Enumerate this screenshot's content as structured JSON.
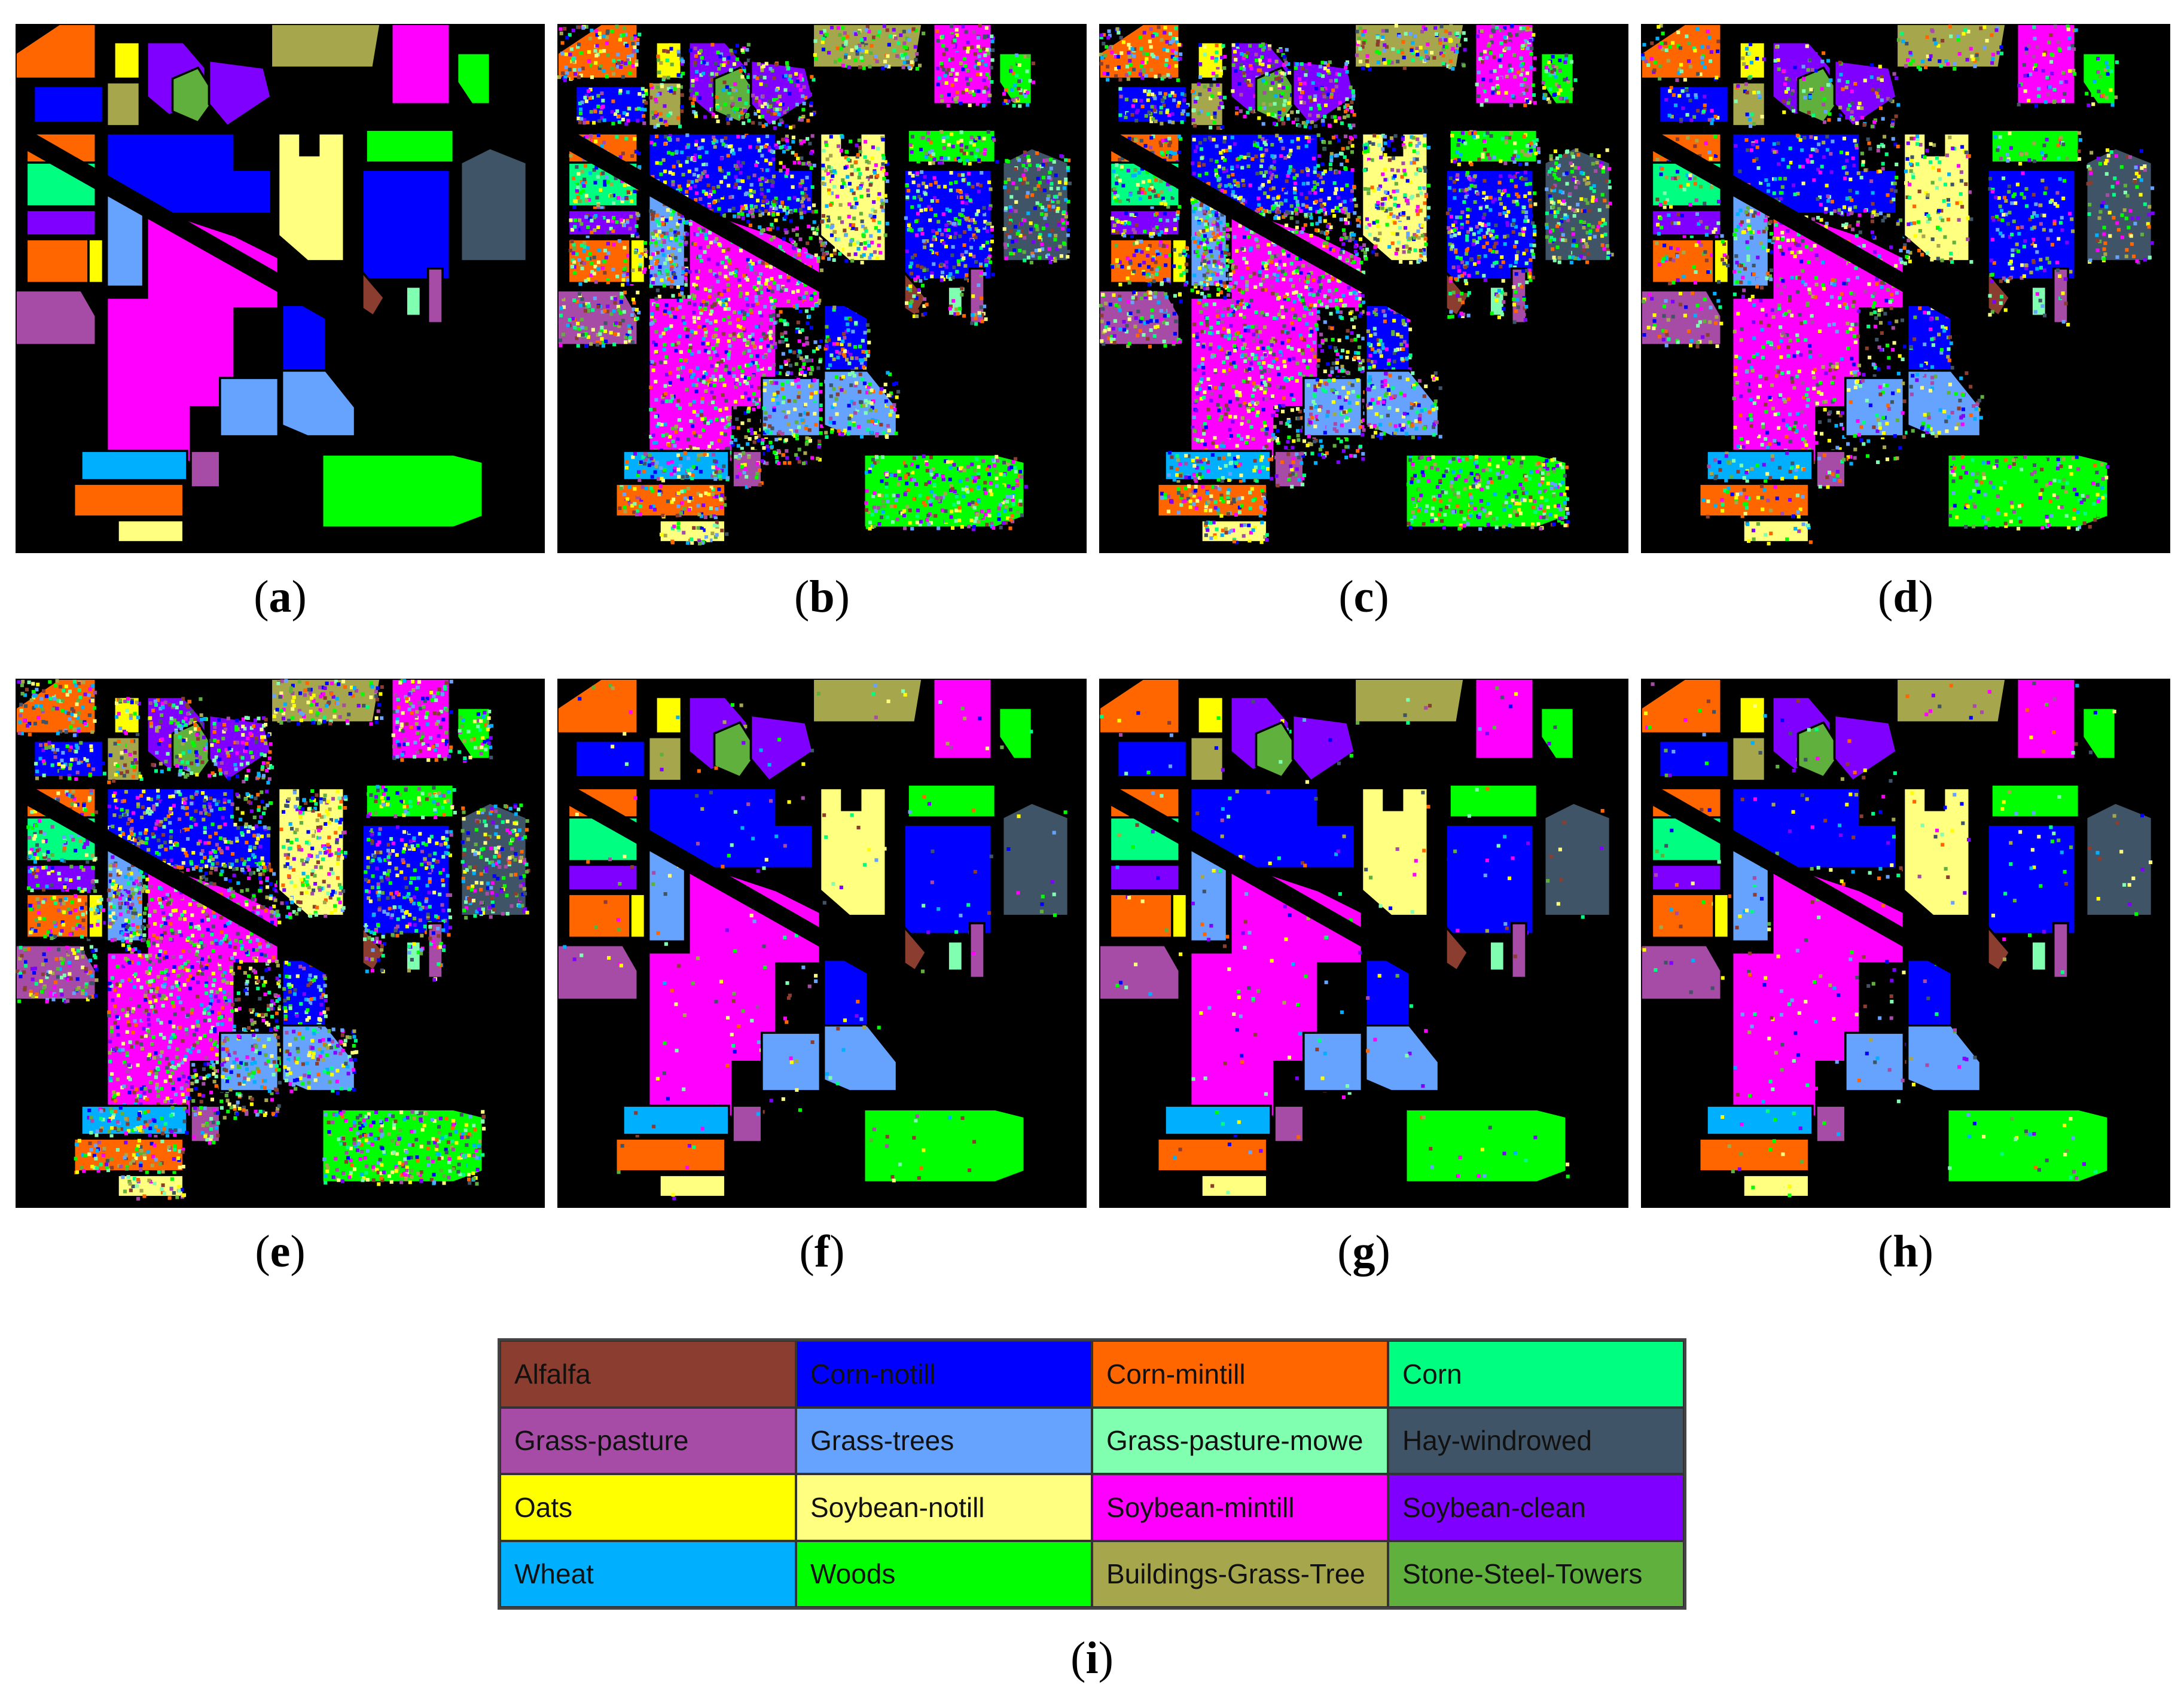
{
  "panels": [
    {
      "id": "a",
      "caption": "a",
      "style": "ground-truth"
    },
    {
      "id": "b",
      "caption": "b",
      "style": "noisy-high"
    },
    {
      "id": "c",
      "caption": "c",
      "style": "noisy-high"
    },
    {
      "id": "d",
      "caption": "d",
      "style": "noisy-medium"
    },
    {
      "id": "e",
      "caption": "e",
      "style": "noisy-high"
    },
    {
      "id": "f",
      "caption": "f",
      "style": "smooth"
    },
    {
      "id": "g",
      "caption": "g",
      "style": "smooth"
    },
    {
      "id": "h",
      "caption": "h",
      "style": "smooth-light"
    }
  ],
  "legend": {
    "caption": "i",
    "classes": [
      {
        "name": "Alfalfa",
        "color": "#8B3E2F"
      },
      {
        "name": "Corn-notill",
        "color": "#0000FF"
      },
      {
        "name": "Corn-mintill",
        "color": "#FF6600"
      },
      {
        "name": "Corn",
        "color": "#00FF80"
      },
      {
        "name": "Grass-pasture",
        "color": "#A64CA6"
      },
      {
        "name": "Grass-trees",
        "color": "#66A3FF"
      },
      {
        "name": "Grass-pasture-mowe",
        "color": "#80FFB0"
      },
      {
        "name": "Hay-windrowed",
        "color": "#3F5466"
      },
      {
        "name": "Oats",
        "color": "#FFFF00"
      },
      {
        "name": "Soybean-notill",
        "color": "#FFFF80"
      },
      {
        "name": "Soybean-mintill",
        "color": "#FF00FF"
      },
      {
        "name": "Soybean-clean",
        "color": "#8000FF"
      },
      {
        "name": "Wheat",
        "color": "#00B0FF"
      },
      {
        "name": "Woods",
        "color": "#00FF00"
      },
      {
        "name": "Buildings-Grass-Tree",
        "color": "#A6A64C"
      },
      {
        "name": "Stone-Steel-Towers",
        "color": "#5FB03C"
      }
    ]
  }
}
